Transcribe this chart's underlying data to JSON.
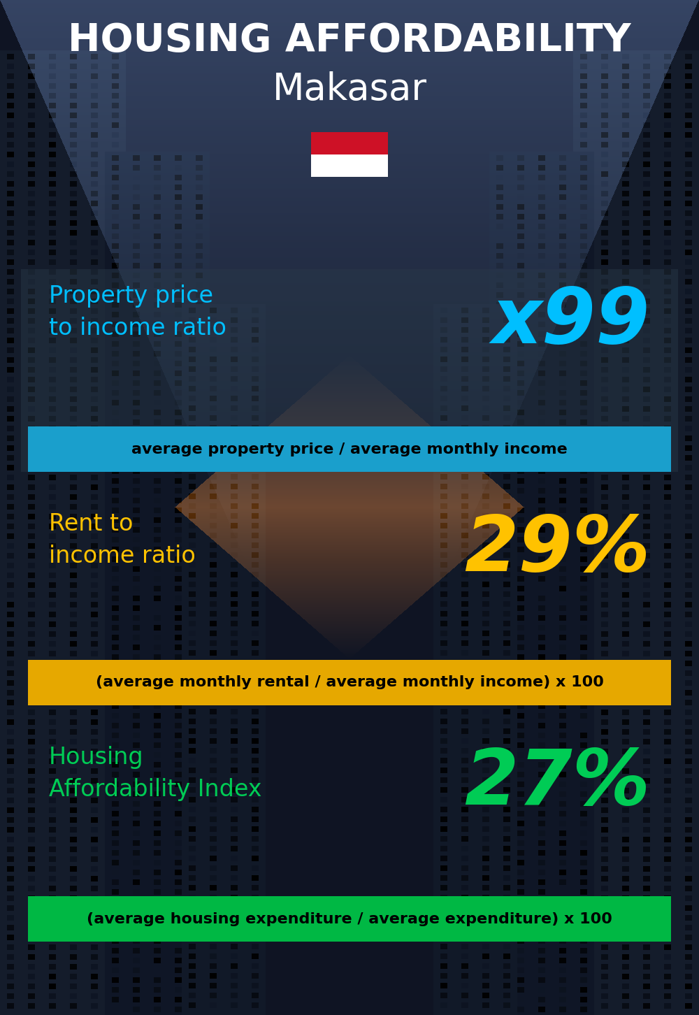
{
  "title_line1": "HOUSING AFFORDABILITY",
  "title_line2": "Makasar",
  "bg_color": "#0a0f1a",
  "section1_label": "Property price\nto income ratio",
  "section1_value": "x99",
  "section1_label_color": "#00bfff",
  "section1_value_color": "#00bfff",
  "section1_formula": "average property price / average monthly income",
  "section1_formula_bg": "#1a9fcc",
  "section2_label": "Rent to\nincome ratio",
  "section2_value": "29%",
  "section2_label_color": "#ffc200",
  "section2_value_color": "#ffc200",
  "section2_formula": "(average monthly rental / average monthly income) x 100",
  "section2_formula_bg": "#e6a800",
  "section3_label": "Housing\nAffordability Index",
  "section3_value": "27%",
  "section3_label_color": "#00cc55",
  "section3_value_color": "#00cc55",
  "section3_formula": "(average housing expenditure / average expenditure) x 100",
  "section3_formula_bg": "#00b844",
  "title_fontsize": 40,
  "subtitle_fontsize": 38,
  "label_fontsize": 24,
  "value_fontsize": 80,
  "formula_fontsize": 16,
  "flag_red": "#CE1126",
  "flag_white": "#FFFFFF"
}
